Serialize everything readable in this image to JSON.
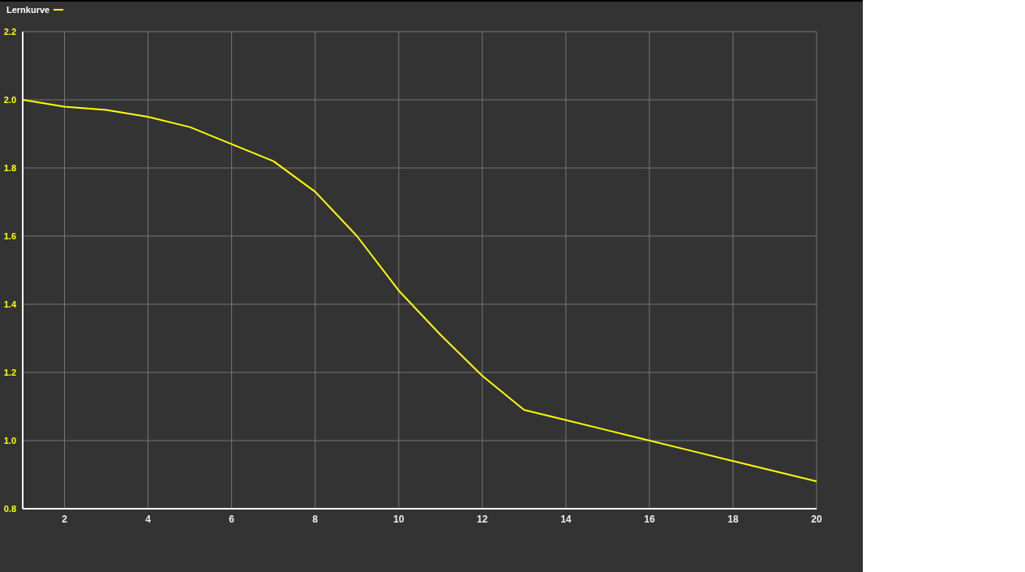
{
  "chart_data": {
    "type": "line",
    "x": [
      1,
      2,
      3,
      4,
      5,
      6,
      7,
      8,
      9,
      10,
      11,
      12,
      13,
      14,
      15,
      16,
      17,
      18,
      19,
      20
    ],
    "series": [
      {
        "name": "Lernkurve",
        "color": "#ffff00",
        "values": [
          2.0,
          1.98,
          1.97,
          1.95,
          1.92,
          1.87,
          1.82,
          1.73,
          1.6,
          1.44,
          1.31,
          1.19,
          1.09,
          1.06,
          1.03,
          1.0,
          0.97,
          0.94,
          0.91,
          0.88
        ]
      }
    ],
    "xlim": [
      1,
      20
    ],
    "xticks": [
      2,
      4,
      6,
      8,
      10,
      12,
      14,
      16,
      18,
      20
    ],
    "ylim": [
      0.8,
      2.2
    ],
    "yticks": [
      {
        "value": 0.8,
        "label": "0.8"
      },
      {
        "value": 1,
        "label": "1.0"
      },
      {
        "value": 1.2,
        "label": "1.2"
      },
      {
        "value": 1.4,
        "label": "1.4"
      },
      {
        "value": 1.6,
        "label": "1.6"
      },
      {
        "value": 1.8,
        "label": "1.8"
      },
      {
        "value": 2,
        "label": "2.0"
      },
      {
        "value": 2.2,
        "label": "2.2"
      }
    ],
    "grid": true,
    "legend": "top left",
    "marker": "none",
    "line_style": "solid"
  }
}
